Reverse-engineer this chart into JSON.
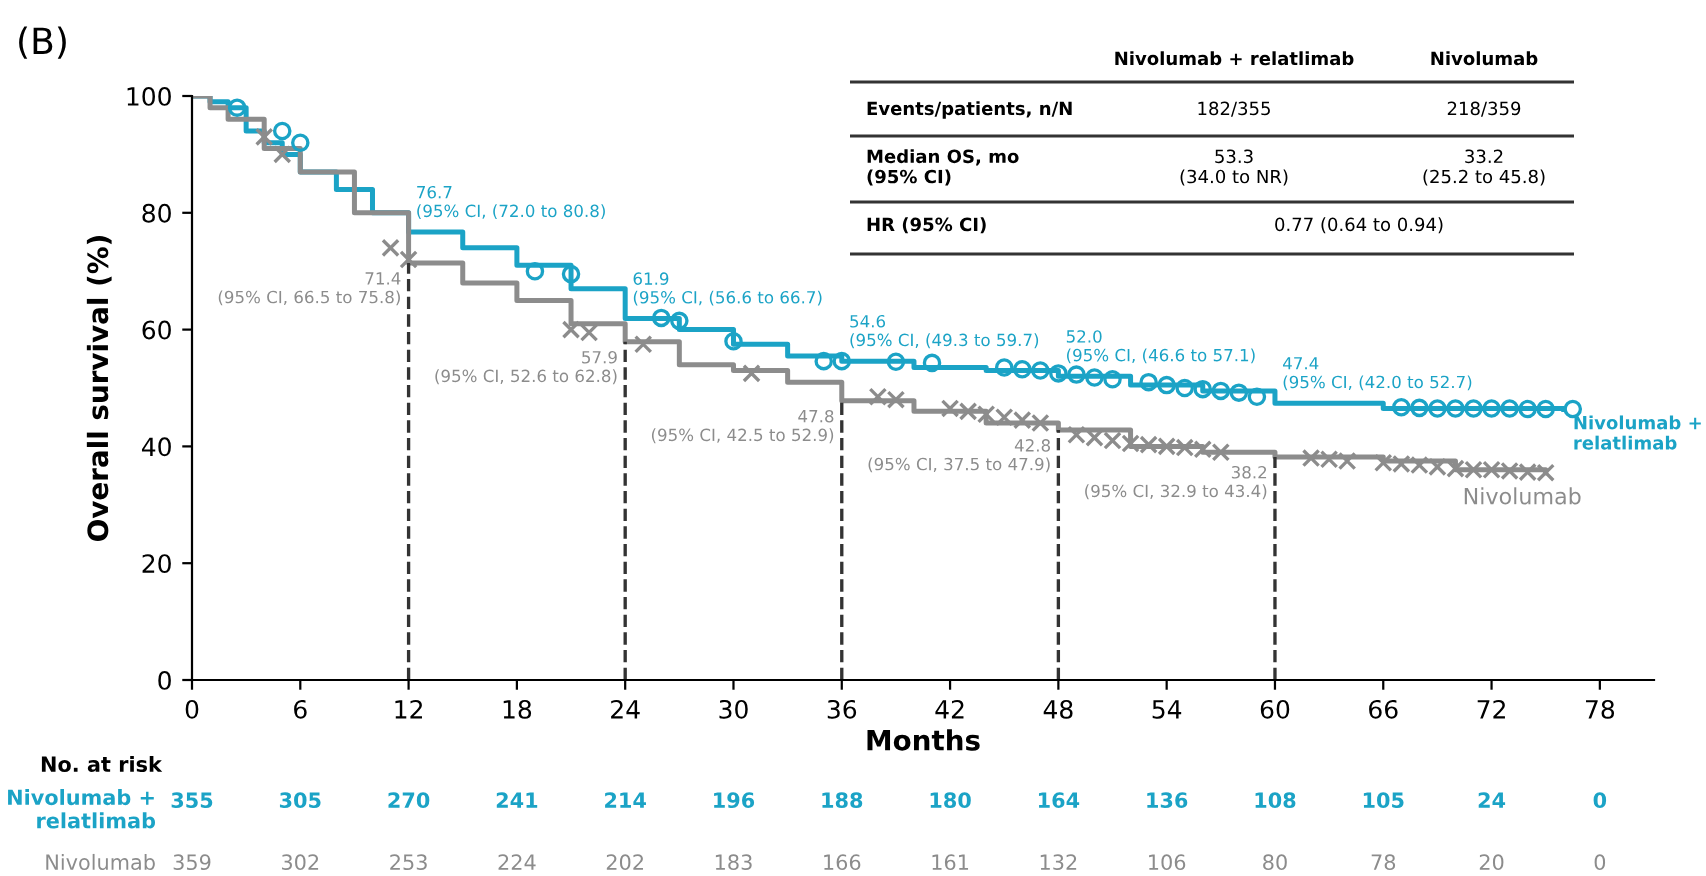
{
  "chart_data": {
    "type": "step",
    "xlabel": "Months",
    "ylabel": "Overall survival (%)",
    "xlim": [
      0,
      81
    ],
    "ylim": [
      0,
      100
    ],
    "xticks": [
      0,
      6,
      12,
      18,
      24,
      30,
      36,
      42,
      48,
      54,
      60,
      66,
      72,
      78
    ],
    "yticks": [
      0,
      20,
      40,
      60,
      80,
      100
    ],
    "grid": false,
    "series": [
      {
        "name": "Nivolumab +\nrelatlimab",
        "color": "#1ba3c6",
        "x": [
          0,
          1,
          2,
          3,
          4,
          5,
          6,
          8,
          10,
          12,
          15,
          18,
          21,
          24,
          27,
          30,
          33,
          36,
          40,
          44,
          48,
          52,
          56,
          60,
          66,
          72,
          76
        ],
        "values": [
          100,
          99,
          98,
          94,
          92,
          90,
          87,
          84,
          80,
          76.7,
          74,
          71,
          67,
          61.9,
          60,
          57.5,
          55.5,
          54.6,
          53.5,
          53,
          52.0,
          50.5,
          49.5,
          47.4,
          46.5,
          46.5,
          46.3
        ]
      },
      {
        "name": "Nivolumab",
        "color": "#8c8c8c",
        "x": [
          0,
          1,
          2,
          4,
          6,
          9,
          12,
          15,
          18,
          21,
          24,
          27,
          30,
          33,
          36,
          40,
          44,
          48,
          52,
          56,
          60,
          66,
          70,
          75
        ],
        "values": [
          100,
          98,
          96,
          91,
          87,
          80,
          71.4,
          68,
          65,
          61,
          57.9,
          54,
          53,
          51,
          47.8,
          46,
          44,
          42.8,
          40,
          39,
          38.2,
          37.5,
          36,
          35.5
        ]
      },
      {
        "type": "scatter",
        "color": "#1ba3c6",
        "marker": "circle",
        "x": [
          2.5,
          5,
          6,
          19,
          21,
          26,
          27,
          30,
          35,
          36,
          39,
          41,
          45,
          46,
          47,
          48,
          49,
          50,
          51,
          53,
          54,
          55,
          56,
          57,
          58,
          59,
          67,
          68,
          69,
          70,
          71,
          72,
          73,
          74,
          75,
          76.5
        ],
        "values": [
          98,
          94,
          92,
          70,
          69.5,
          62,
          61.5,
          58,
          54.6,
          54.6,
          54.5,
          54.3,
          53.5,
          53.2,
          53,
          52.5,
          52.3,
          51.8,
          51.5,
          51,
          50.5,
          50,
          49.8,
          49.5,
          49.2,
          48.5,
          46.7,
          46.6,
          46.5,
          46.5,
          46.5,
          46.5,
          46.5,
          46.4,
          46.4,
          46.4
        ]
      },
      {
        "type": "scatter",
        "color": "#8c8c8c",
        "marker": "cross",
        "x": [
          4,
          5,
          11,
          12,
          21,
          22,
          25,
          31,
          38,
          39,
          42,
          43,
          44,
          45,
          46,
          47,
          49,
          50,
          51,
          52,
          53,
          54,
          55,
          56,
          57,
          62,
          63,
          64,
          66,
          67,
          68,
          69,
          70,
          71,
          72,
          73,
          74,
          75
        ],
        "values": [
          93,
          90,
          74,
          72,
          60,
          59.5,
          57.5,
          52.5,
          48.5,
          48,
          46.5,
          46,
          45.5,
          45,
          44.5,
          44,
          42,
          41.5,
          41,
          40.5,
          40.3,
          40,
          39.8,
          39.5,
          39,
          38,
          37.8,
          37.5,
          37.2,
          37,
          36.8,
          36.5,
          36.2,
          36,
          36,
          35.8,
          35.6,
          35.5
        ]
      }
    ],
    "ref_lines": [
      {
        "axis": "x",
        "value": 12,
        "label": null,
        "line_style": "dashed",
        "color": "#333333"
      },
      {
        "axis": "x",
        "value": 24,
        "label": null,
        "line_style": "dashed",
        "color": "#333333"
      },
      {
        "axis": "x",
        "value": 36,
        "label": null,
        "line_style": "dashed",
        "color": "#333333"
      },
      {
        "axis": "x",
        "value": 48,
        "label": null,
        "line_style": "dashed",
        "color": "#333333"
      },
      {
        "axis": "x",
        "value": 60,
        "label": null,
        "line_style": "dashed",
        "color": "#333333"
      }
    ],
    "annotations": [
      {
        "text": "76.7\n(95% CI, (72.0 to 80.8)",
        "x": 12,
        "y": 76.7
      },
      {
        "text": "61.9\n(95% CI, (56.6 to 66.7)",
        "x": 24,
        "y": 61.9
      },
      {
        "text": "54.6\n(95% CI, (49.3 to 59.7)",
        "x": 36,
        "y": 54.6
      },
      {
        "text": "52.0\n(95% CI, (46.6 to 57.1)",
        "x": 48,
        "y": 52.0
      },
      {
        "text": "47.4\n(95% CI, (42.0 to 52.7)",
        "x": 60,
        "y": 47.4
      },
      {
        "text": "71.4\n(95% CI, 66.5 to 75.8)",
        "x": 12,
        "y": 71.4
      },
      {
        "text": "57.9\n(95% CI, 52.6 to 62.8)",
        "x": 24,
        "y": 57.9
      },
      {
        "text": "47.8\n(95% CI, 42.5 to 52.9)",
        "x": 36,
        "y": 47.8
      },
      {
        "text": "42.8\n(95% CI, 37.5 to 47.9)",
        "x": 48,
        "y": 42.8
      },
      {
        "text": "38.2\n(95% CI, 32.9 to 43.4)",
        "x": 60,
        "y": 38.2
      },
      "(B)",
      "Nivolumab + relatlimab",
      "Nivolumab",
      "Events/patients, n/N",
      "182/355",
      "218/359",
      "Median OS, mo\n(95% CI)",
      "53.3\n(34.0 to NR)",
      "33.2\n(25.2 to 45.8)",
      "HR (95% CI)",
      "0.77 (0.64 to 0.94)",
      "No. at risk",
      "355",
      "305",
      "270",
      "241",
      "214",
      "196",
      "188",
      "180",
      "164",
      "136",
      "108",
      "105",
      "24",
      "0",
      "359",
      "302",
      "253",
      "224",
      "202",
      "183",
      "166",
      "161",
      "132",
      "106",
      "80",
      "78",
      "20",
      "0"
    ]
  }
}
